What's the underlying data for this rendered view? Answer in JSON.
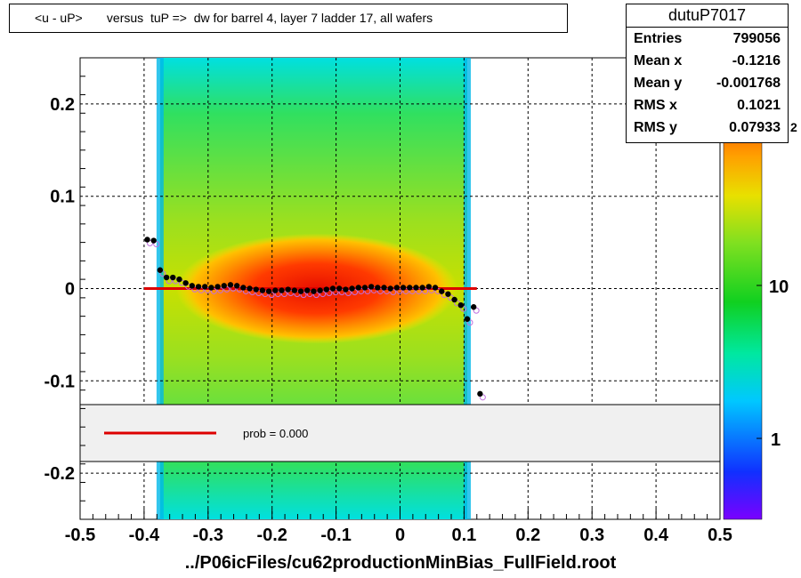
{
  "title": "<u - uP>       versus  tuP =>  dw for barrel 4, layer 7 ladder 17, all wafers",
  "stats": {
    "name": "dutuP7017",
    "rows": [
      {
        "label": "Entries",
        "value": "799056"
      },
      {
        "label": "Mean x",
        "value": "-0.1216"
      },
      {
        "label": "Mean y",
        "value": "-0.001768"
      },
      {
        "label": "RMS x",
        "value": "0.1021"
      },
      {
        "label": "RMS y",
        "value": "0.07933"
      }
    ]
  },
  "legend": {
    "label": "prob = 0.000",
    "line_color": "#dd0000"
  },
  "footer": "../P06icFiles/cu62productionMinBias_FullField.root",
  "colorbar": {
    "tick_labels": [
      "1",
      "10",
      "10"
    ],
    "exponent": "2"
  },
  "chart_data": {
    "type": "heatmap",
    "xlim": [
      -0.5,
      0.5
    ],
    "ylim": [
      -0.25,
      0.25
    ],
    "x_ticks": [
      "-0.5",
      "-0.4",
      "-0.3",
      "-0.2",
      "-0.1",
      "0",
      "0.1",
      "0.2",
      "0.3",
      "0.4",
      "0.5"
    ],
    "y_ticks": [
      "-0.2",
      "-0.1",
      "0",
      "0.1",
      "0.2"
    ],
    "grid": true,
    "color_scale": "log",
    "profile_points": {
      "x": [
        -0.395,
        -0.385,
        -0.375,
        -0.365,
        -0.355,
        -0.345,
        -0.335,
        -0.325,
        -0.315,
        -0.305,
        -0.295,
        -0.285,
        -0.275,
        -0.265,
        -0.255,
        -0.245,
        -0.235,
        -0.225,
        -0.215,
        -0.205,
        -0.195,
        -0.185,
        -0.175,
        -0.165,
        -0.155,
        -0.145,
        -0.135,
        -0.125,
        -0.115,
        -0.105,
        -0.095,
        -0.085,
        -0.075,
        -0.065,
        -0.055,
        -0.045,
        -0.035,
        -0.025,
        -0.015,
        -0.005,
        0.005,
        0.015,
        0.025,
        0.035,
        0.045,
        0.055,
        0.065,
        0.075,
        0.085,
        0.095,
        0.105,
        0.115,
        0.125
      ],
      "y": [
        0.053,
        0.052,
        0.02,
        0.012,
        0.012,
        0.01,
        0.006,
        0.003,
        0.002,
        0.002,
        0.001,
        0.002,
        0.003,
        0.004,
        0.003,
        0.001,
        0.0,
        -0.001,
        -0.002,
        -0.003,
        -0.002,
        -0.002,
        -0.001,
        -0.002,
        -0.003,
        -0.002,
        -0.003,
        -0.002,
        -0.001,
        0.0,
        0.0,
        -0.001,
        0.0,
        0.001,
        0.001,
        0.002,
        0.001,
        0.001,
        0.0,
        0.001,
        0.001,
        0.001,
        0.001,
        0.001,
        0.002,
        0.001,
        -0.003,
        -0.006,
        -0.012,
        -0.018,
        -0.033,
        -0.02,
        -0.114
      ]
    },
    "fit_line": {
      "x": [
        -0.4,
        0.12
      ],
      "y": [
        0.0,
        0.0
      ]
    }
  }
}
